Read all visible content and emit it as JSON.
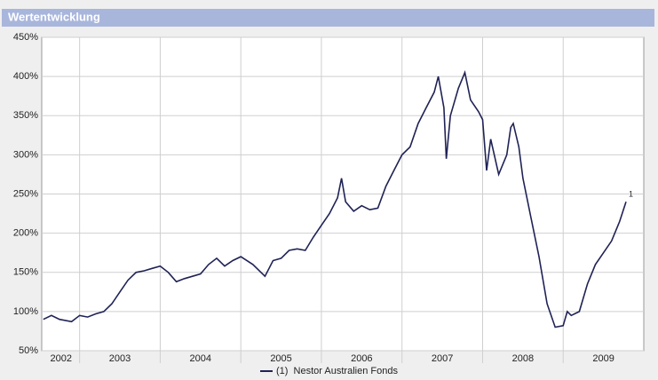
{
  "chart_data": {
    "type": "line",
    "title": "Wertentwicklung",
    "ylim": [
      50,
      450
    ],
    "yticks": [
      {
        "value": 50,
        "label": "50%"
      },
      {
        "value": 100,
        "label": "100%"
      },
      {
        "value": 150,
        "label": "150%"
      },
      {
        "value": 200,
        "label": "200%"
      },
      {
        "value": 250,
        "label": "250%"
      },
      {
        "value": 300,
        "label": "300%"
      },
      {
        "value": 350,
        "label": "350%"
      },
      {
        "value": 400,
        "label": "400%"
      },
      {
        "value": 450,
        "label": "450%"
      }
    ],
    "xlim": [
      2002.53,
      2010.0
    ],
    "xticks": [
      {
        "value": 2002.77,
        "label": "2002"
      },
      {
        "value": 2003.5,
        "label": "2003"
      },
      {
        "value": 2004.5,
        "label": "2004"
      },
      {
        "value": 2005.5,
        "label": "2005"
      },
      {
        "value": 2006.5,
        "label": "2006"
      },
      {
        "value": 2007.5,
        "label": "2007"
      },
      {
        "value": 2008.5,
        "label": "2008"
      },
      {
        "value": 2009.5,
        "label": "2009"
      }
    ],
    "xgrid": [
      2003,
      2004,
      2005,
      2006,
      2007,
      2008,
      2009
    ],
    "grid": true,
    "annotation": "1",
    "series": [
      {
        "name": "(1)  Nestor Australien Fonds",
        "color": "#1f2255",
        "x": [
          2002.55,
          2002.65,
          2002.75,
          2002.9,
          2003.0,
          2003.1,
          2003.2,
          2003.3,
          2003.4,
          2003.5,
          2003.6,
          2003.7,
          2003.8,
          2003.9,
          2004.0,
          2004.1,
          2004.2,
          2004.3,
          2004.4,
          2004.5,
          2004.6,
          2004.7,
          2004.8,
          2004.9,
          2005.0,
          2005.15,
          2005.3,
          2005.4,
          2005.5,
          2005.6,
          2005.7,
          2005.8,
          2005.9,
          2006.0,
          2006.1,
          2006.2,
          2006.25,
          2006.3,
          2006.4,
          2006.5,
          2006.6,
          2006.7,
          2006.8,
          2006.9,
          2007.0,
          2007.1,
          2007.2,
          2007.3,
          2007.4,
          2007.45,
          2007.52,
          2007.55,
          2007.6,
          2007.7,
          2007.78,
          2007.85,
          2007.95,
          2008.0,
          2008.05,
          2008.1,
          2008.2,
          2008.3,
          2008.35,
          2008.38,
          2008.45,
          2008.5,
          2008.6,
          2008.7,
          2008.8,
          2008.9,
          2009.0,
          2009.05,
          2009.1,
          2009.2,
          2009.3,
          2009.4,
          2009.5,
          2009.6,
          2009.7,
          2009.78
        ],
        "values": [
          90,
          95,
          90,
          87,
          95,
          93,
          97,
          100,
          110,
          125,
          140,
          150,
          152,
          155,
          158,
          150,
          138,
          142,
          145,
          148,
          160,
          168,
          158,
          165,
          170,
          160,
          145,
          165,
          168,
          178,
          180,
          178,
          195,
          210,
          225,
          245,
          270,
          240,
          228,
          235,
          230,
          232,
          260,
          280,
          300,
          310,
          340,
          360,
          380,
          400,
          360,
          295,
          350,
          385,
          405,
          370,
          355,
          345,
          280,
          320,
          275,
          300,
          335,
          340,
          310,
          270,
          220,
          170,
          110,
          80,
          82,
          100,
          95,
          100,
          135,
          160,
          175,
          190,
          215,
          240
        ]
      }
    ]
  }
}
